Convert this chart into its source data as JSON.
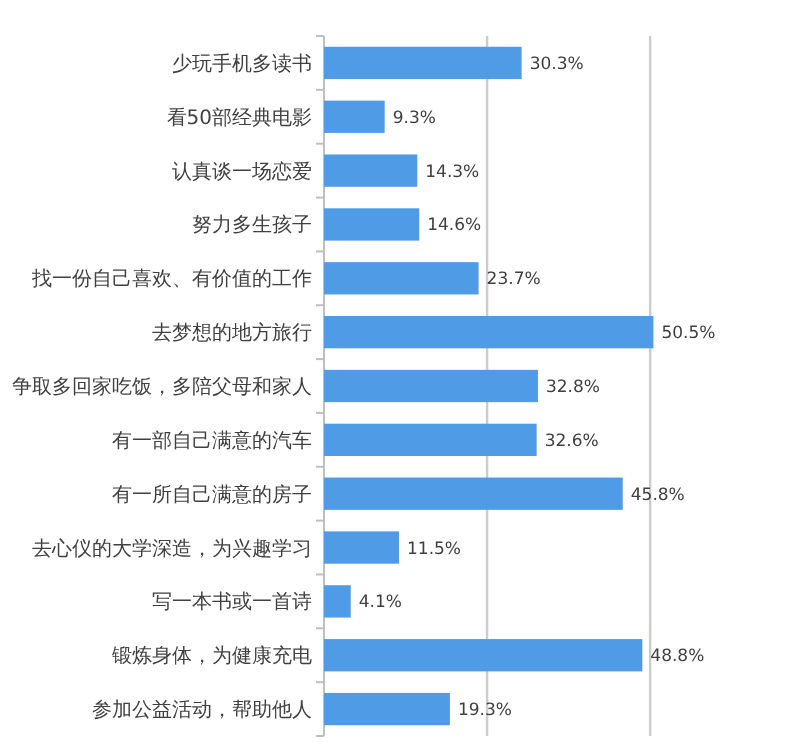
{
  "chart_data": {
    "type": "bar",
    "orientation": "horizontal",
    "categories": [
      "少玩手机多读书",
      "看50部经典电影",
      "认真谈一场恋爱",
      "努力多生孩子",
      "找一份自己喜欢、有价值的工作",
      "去梦想的地方旅行",
      "争取多回家吃饭，多陪父母和家人",
      "有一部自己满意的汽车",
      "有一所自己满意的房子",
      "去心仪的大学深造，为兴趣学习",
      "写一本书或一首诗",
      "锻炼身体，为健康充电",
      "参加公益活动，帮助他人"
    ],
    "values": [
      30.3,
      9.3,
      14.3,
      14.6,
      23.7,
      50.5,
      32.8,
      32.6,
      45.8,
      11.5,
      4.1,
      48.8,
      19.3
    ],
    "value_labels": [
      "30.3%",
      "9.3%",
      "14.3%",
      "14.6%",
      "23.7%",
      "50.5%",
      "32.8%",
      "32.6%",
      "45.8%",
      "11.5%",
      "4.1%",
      "48.8%",
      "19.3%"
    ],
    "color": "#4f9be6",
    "tick_labels": "y",
    "ref_lines": [
      {
        "axis": "x",
        "value": 25,
        "color": "#cccccc"
      },
      {
        "axis": "x",
        "value": 50,
        "color": "#cccccc"
      }
    ]
  }
}
